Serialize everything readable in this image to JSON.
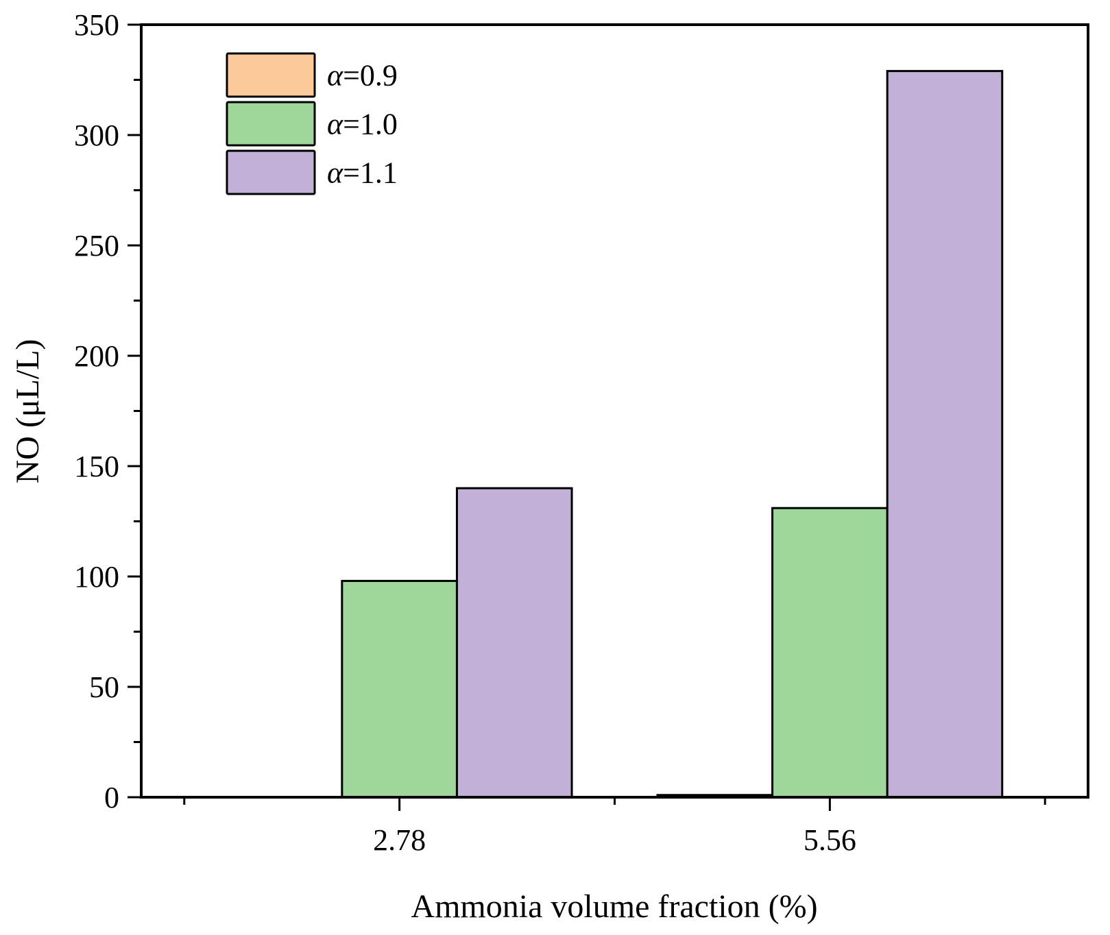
{
  "chart_data": {
    "type": "bar",
    "title": "",
    "xlabel": "Ammonia volume fraction (%)",
    "ylabel": "NO (μL/L)",
    "categories": [
      "2.78",
      "5.56"
    ],
    "ylim": [
      0,
      350
    ],
    "yticks": [
      "0",
      "50",
      "100",
      "150",
      "200",
      "250",
      "300",
      "350"
    ],
    "grid": false,
    "legend": {
      "placement": "top-left"
    },
    "series": [
      {
        "name": "α=0.9",
        "alpha_symbol": "α",
        "alpha_value": "=0.9",
        "color": "#FBC99A",
        "values": [
          0,
          1
        ]
      },
      {
        "name": "α=1.0",
        "alpha_symbol": "α",
        "alpha_value": "=1.0",
        "color": "#9ED69C",
        "values": [
          98,
          131
        ]
      },
      {
        "name": "α=1.1",
        "alpha_symbol": "α",
        "alpha_value": "=1.1",
        "color": "#C2B1D6",
        "values": [
          140,
          329
        ]
      }
    ]
  }
}
